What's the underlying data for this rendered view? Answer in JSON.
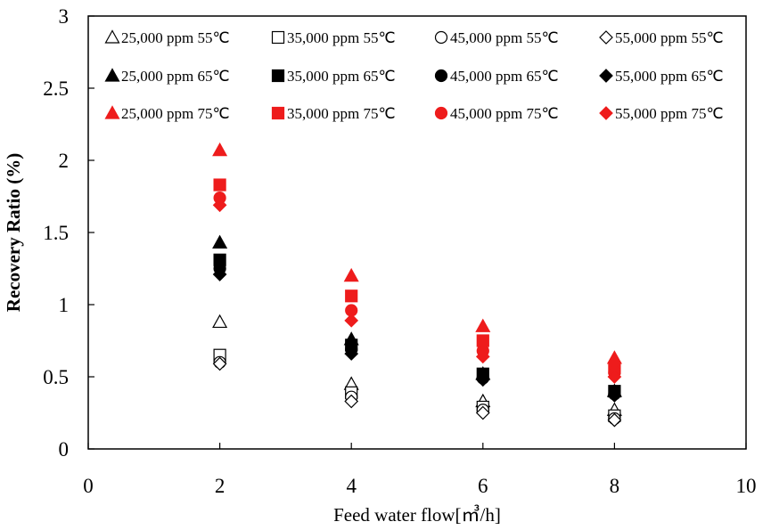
{
  "chart_data": {
    "type": "scatter",
    "xlabel": "Feed water flow[㎥/h]",
    "ylabel": "Recovery Ratio (%)",
    "xlim": [
      0,
      10
    ],
    "ylim": [
      0,
      3
    ],
    "x_ticks": [
      "0",
      "2",
      "4",
      "6",
      "8",
      "10"
    ],
    "y_ticks": [
      "0",
      "0.5",
      "1",
      "1.5",
      "2",
      "2.5",
      "3"
    ],
    "grid": false,
    "legend_position": "top, inside plot (3 rows x 4 columns)",
    "marker_colors": {
      "55": "#ffffff",
      "65": "#000000",
      "75": "#ee1c1c"
    },
    "series": [
      {
        "name": "25,000 ppm 55℃",
        "marker": "triangle",
        "temp": "55",
        "x": [
          2,
          4,
          6,
          8
        ],
        "y": [
          0.88,
          0.45,
          0.33,
          0.27
        ]
      },
      {
        "name": "35,000 ppm 55℃",
        "marker": "square",
        "temp": "55",
        "x": [
          2,
          4,
          6,
          8
        ],
        "y": [
          0.65,
          0.39,
          0.29,
          0.23
        ]
      },
      {
        "name": "45,000 ppm 55℃",
        "marker": "circle",
        "temp": "55",
        "x": [
          2,
          4,
          6,
          8
        ],
        "y": [
          0.6,
          0.36,
          0.27,
          0.21
        ]
      },
      {
        "name": "55,000 ppm 55℃",
        "marker": "diamond",
        "temp": "55",
        "x": [
          2,
          4,
          6,
          8
        ],
        "y": [
          0.59,
          0.33,
          0.25,
          0.2
        ]
      },
      {
        "name": "25,000 ppm 65℃",
        "marker": "triangle",
        "temp": "65",
        "x": [
          2,
          4,
          6,
          8
        ],
        "y": [
          1.43,
          0.76,
          0.52,
          0.4
        ]
      },
      {
        "name": "35,000 ppm 65℃",
        "marker": "square",
        "temp": "65",
        "x": [
          2,
          4,
          6,
          8
        ],
        "y": [
          1.31,
          0.72,
          0.52,
          0.4
        ]
      },
      {
        "name": "45,000 ppm 65℃",
        "marker": "circle",
        "temp": "65",
        "x": [
          2,
          4,
          6,
          8
        ],
        "y": [
          1.25,
          0.69,
          0.49,
          0.38
        ]
      },
      {
        "name": "55,000 ppm 65℃",
        "marker": "diamond",
        "temp": "65",
        "x": [
          2,
          4,
          6,
          8
        ],
        "y": [
          1.21,
          0.66,
          0.48,
          0.37
        ]
      },
      {
        "name": "25,000 ppm 75℃",
        "marker": "triangle",
        "temp": "75",
        "x": [
          2,
          4,
          6,
          8
        ],
        "y": [
          2.07,
          1.2,
          0.85,
          0.63
        ]
      },
      {
        "name": "35,000 ppm 75℃",
        "marker": "square",
        "temp": "75",
        "x": [
          2,
          4,
          6,
          8
        ],
        "y": [
          1.83,
          1.06,
          0.75,
          0.56
        ]
      },
      {
        "name": "45,000 ppm 75℃",
        "marker": "circle",
        "temp": "75",
        "x": [
          2,
          4,
          6,
          8
        ],
        "y": [
          1.74,
          0.96,
          0.68,
          0.53
        ]
      },
      {
        "name": "55,000 ppm 75℃",
        "marker": "diamond",
        "temp": "75",
        "x": [
          2,
          4,
          6,
          8
        ],
        "y": [
          1.69,
          0.89,
          0.64,
          0.5
        ]
      }
    ]
  }
}
